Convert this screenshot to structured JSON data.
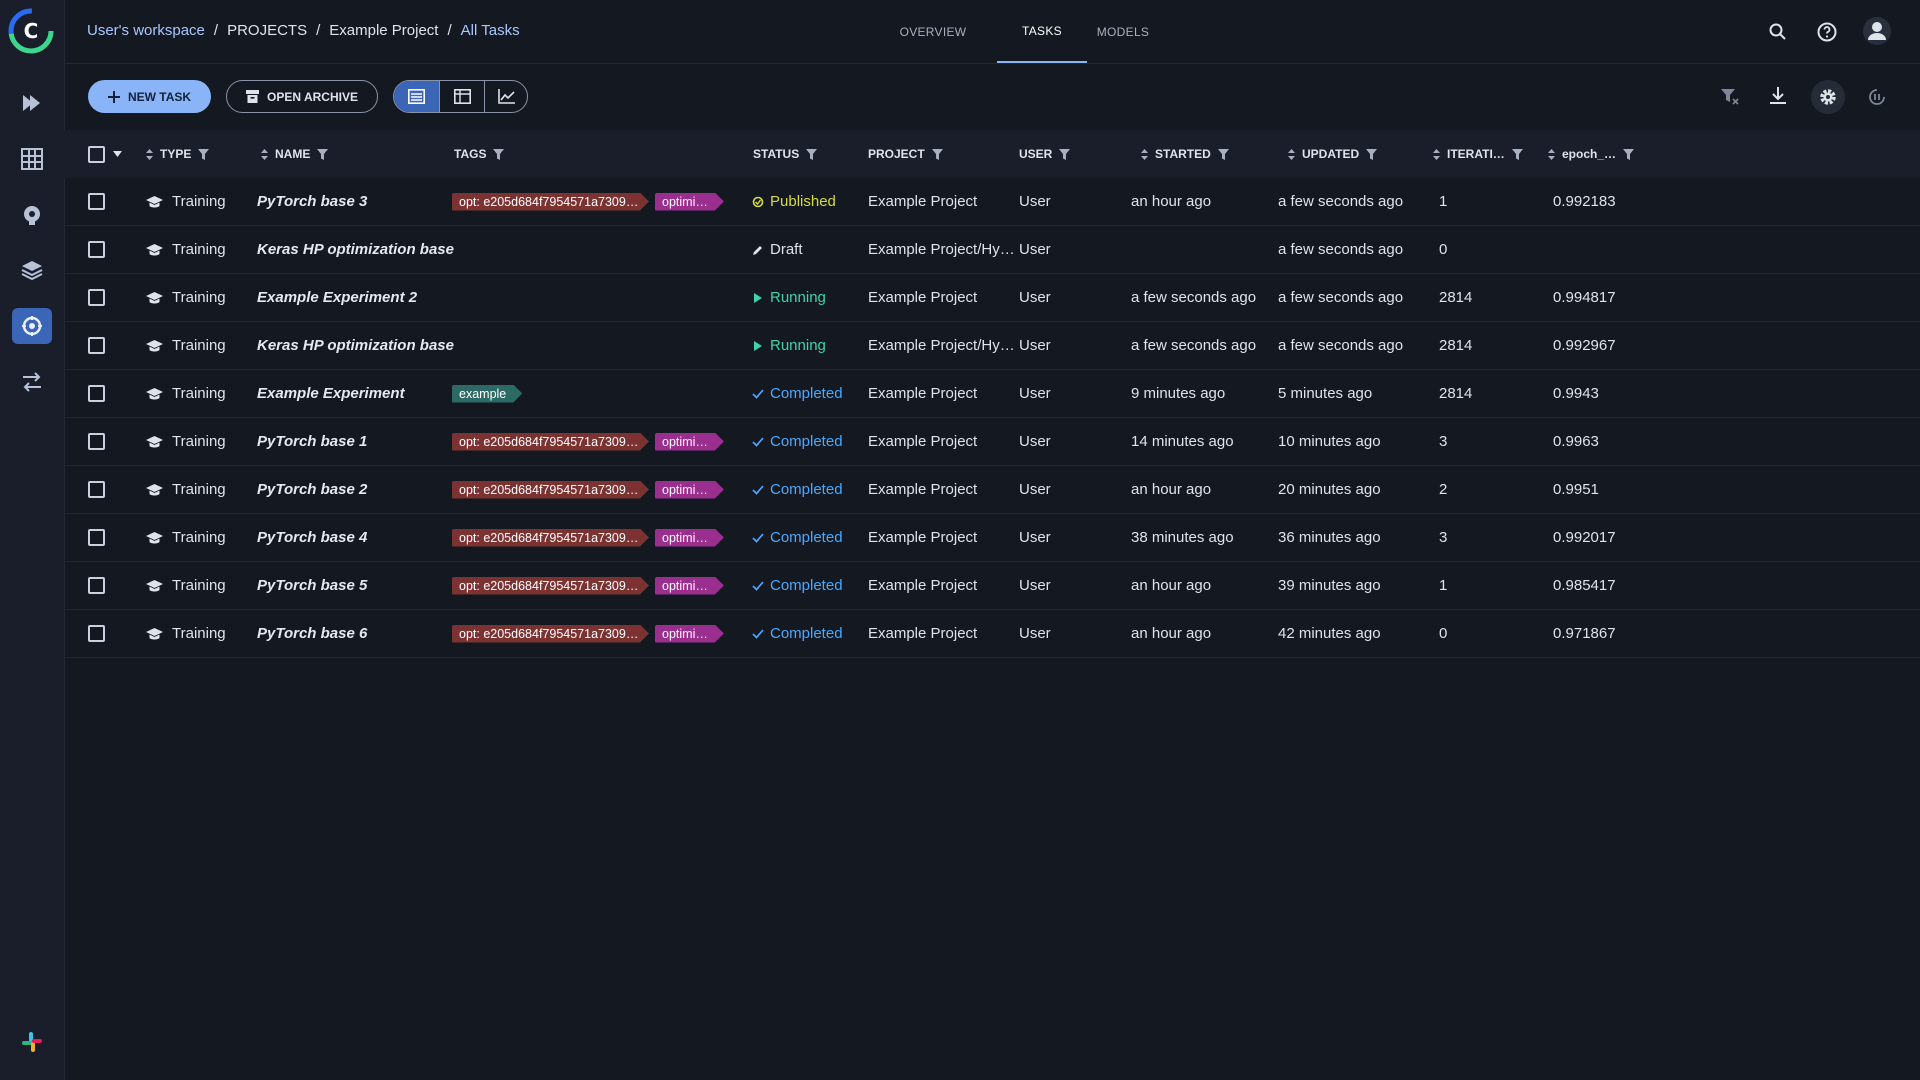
{
  "header": {
    "breadcrumbs": [
      "User's workspace",
      "PROJECTS",
      "Example Project",
      "All Tasks"
    ],
    "separator": "/",
    "tabs": [
      "OVERVIEW",
      "TASKS",
      "MODELS"
    ],
    "active_tab": 1
  },
  "toolbar": {
    "new_task": "NEW TASK",
    "open_archive": "OPEN ARCHIVE"
  },
  "table": {
    "columns": [
      "TYPE",
      "NAME",
      "TAGS",
      "STATUS",
      "PROJECT",
      "USER",
      "STARTED",
      "UPDATED",
      "ITERATI…",
      "epoch_…"
    ],
    "rows": [
      {
        "type": "Training",
        "name": "PyTorch base 3",
        "tags": [
          {
            "label": "opt: e205d684f7954571a7309…",
            "color": "#7d3232"
          },
          {
            "label": "optimi…",
            "color": "#9b2f8f"
          }
        ],
        "status": {
          "label": "Published",
          "color": "#d7dc3c",
          "icon": "badge"
        },
        "project": "Example Project",
        "user": "User",
        "started": "an hour ago",
        "updated": "a few seconds ago",
        "iterations": "1",
        "epoch": "0.992183"
      },
      {
        "type": "Training",
        "name": "Keras HP optimization base",
        "tags": [],
        "status": {
          "label": "Draft",
          "color": "#dfe3ea",
          "icon": "pencil"
        },
        "project": "Example Project/Hy…",
        "user": "User",
        "started": null,
        "updated": "a few seconds ago",
        "iterations": "0",
        "epoch": null
      },
      {
        "type": "Training",
        "name": "Example Experiment 2",
        "tags": [],
        "status": {
          "label": "Running",
          "color": "#3fd3a8",
          "icon": "play"
        },
        "project": "Example Project",
        "user": "User",
        "started": "a few seconds ago",
        "updated": "a few seconds ago",
        "iterations": "2814",
        "epoch": "0.994817"
      },
      {
        "type": "Training",
        "name": "Keras HP optimization base",
        "tags": [],
        "status": {
          "label": "Running",
          "color": "#3fd3a8",
          "icon": "play"
        },
        "project": "Example Project/Hy…",
        "user": "User",
        "started": "a few seconds ago",
        "updated": "a few seconds ago",
        "iterations": "2814",
        "epoch": "0.992967"
      },
      {
        "type": "Training",
        "name": "Example Experiment",
        "tags": [
          {
            "label": "example",
            "color": "#2c6a66"
          }
        ],
        "status": {
          "label": "Completed",
          "color": "#4aa9ff",
          "icon": "check"
        },
        "project": "Example Project",
        "user": "User",
        "started": "9 minutes ago",
        "updated": "5 minutes ago",
        "iterations": "2814",
        "epoch": "0.9943"
      },
      {
        "type": "Training",
        "name": "PyTorch base 1",
        "tags": [
          {
            "label": "opt: e205d684f7954571a7309…",
            "color": "#7d3232"
          },
          {
            "label": "optimi…",
            "color": "#9b2f8f"
          }
        ],
        "status": {
          "label": "Completed",
          "color": "#4aa9ff",
          "icon": "check"
        },
        "project": "Example Project",
        "user": "User",
        "started": "14 minutes ago",
        "updated": "10 minutes ago",
        "iterations": "3",
        "epoch": "0.9963"
      },
      {
        "type": "Training",
        "name": "PyTorch base 2",
        "tags": [
          {
            "label": "opt: e205d684f7954571a7309…",
            "color": "#7d3232"
          },
          {
            "label": "optimi…",
            "color": "#9b2f8f"
          }
        ],
        "status": {
          "label": "Completed",
          "color": "#4aa9ff",
          "icon": "check"
        },
        "project": "Example Project",
        "user": "User",
        "started": "an hour ago",
        "updated": "20 minutes ago",
        "iterations": "2",
        "epoch": "0.9951"
      },
      {
        "type": "Training",
        "name": "PyTorch base 4",
        "tags": [
          {
            "label": "opt: e205d684f7954571a7309…",
            "color": "#7d3232"
          },
          {
            "label": "optimi…",
            "color": "#9b2f8f"
          }
        ],
        "status": {
          "label": "Completed",
          "color": "#4aa9ff",
          "icon": "check"
        },
        "project": "Example Project",
        "user": "User",
        "started": "38 minutes ago",
        "updated": "36 minutes ago",
        "iterations": "3",
        "epoch": "0.992017"
      },
      {
        "type": "Training",
        "name": "PyTorch base 5",
        "tags": [
          {
            "label": "opt: e205d684f7954571a7309…",
            "color": "#7d3232"
          },
          {
            "label": "optimi…",
            "color": "#9b2f8f"
          }
        ],
        "status": {
          "label": "Completed",
          "color": "#4aa9ff",
          "icon": "check"
        },
        "project": "Example Project",
        "user": "User",
        "started": "an hour ago",
        "updated": "39 minutes ago",
        "iterations": "1",
        "epoch": "0.985417"
      },
      {
        "type": "Training",
        "name": "PyTorch base 6",
        "tags": [
          {
            "label": "opt: e205d684f7954571a7309…",
            "color": "#7d3232"
          },
          {
            "label": "optimi…",
            "color": "#9b2f8f"
          }
        ],
        "status": {
          "label": "Completed",
          "color": "#4aa9ff",
          "icon": "check"
        },
        "project": "Example Project",
        "user": "User",
        "started": "an hour ago",
        "updated": "42 minutes ago",
        "iterations": "0",
        "epoch": "0.971867"
      }
    ]
  }
}
